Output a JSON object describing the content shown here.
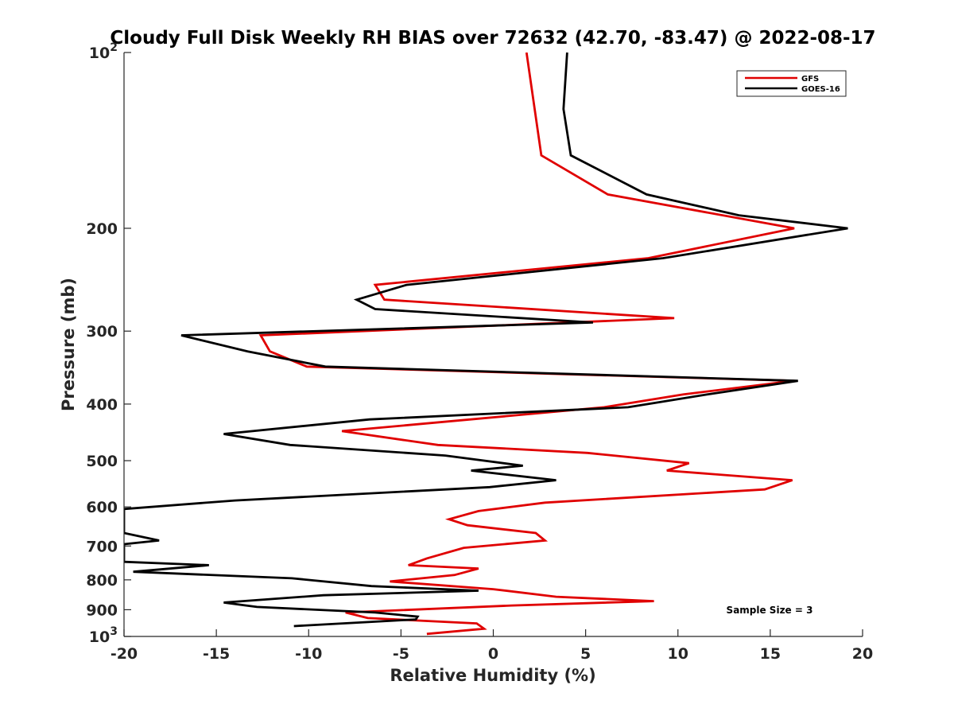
{
  "chart_data": {
    "type": "line",
    "title": "Cloudy Full Disk Weekly RH BIAS over 72632 (42.70, -83.47) @ 2022-08-17",
    "xlabel": "Relative Humidity (%)",
    "ylabel": "Pressure (mb)",
    "xlim": [
      -20,
      20
    ],
    "ylim": [
      100,
      1000
    ],
    "y_scale": "log",
    "y_reversed": true,
    "x_ticks": [
      "-20",
      "-15",
      "-10",
      "-5",
      "0",
      "5",
      "10",
      "15",
      "20"
    ],
    "y_ticks": [
      {
        "value": 100,
        "base": "10",
        "exp": "2"
      },
      {
        "value": 200,
        "base": "200",
        "exp": ""
      },
      {
        "value": 300,
        "base": "300",
        "exp": ""
      },
      {
        "value": 400,
        "base": "400",
        "exp": ""
      },
      {
        "value": 500,
        "base": "500",
        "exp": ""
      },
      {
        "value": 600,
        "base": "600",
        "exp": ""
      },
      {
        "value": 700,
        "base": "700",
        "exp": ""
      },
      {
        "value": 800,
        "base": "800",
        "exp": ""
      },
      {
        "value": 900,
        "base": "900",
        "exp": ""
      },
      {
        "value": 1000,
        "base": "10",
        "exp": "3"
      }
    ],
    "grid": false,
    "legend_position": "top-right",
    "annotation": "Sample Size = 3",
    "series": [
      {
        "name": "GFS",
        "color": "#e00000",
        "points": [
          [
            1.8,
            100
          ],
          [
            2.6,
            150
          ],
          [
            6.2,
            175
          ],
          [
            16.3,
            200
          ],
          [
            8.4,
            225
          ],
          [
            -6.4,
            250
          ],
          [
            -5.9,
            265
          ],
          [
            9.8,
            285
          ],
          [
            -12.6,
            305
          ],
          [
            -12.1,
            325
          ],
          [
            -10.1,
            345
          ],
          [
            16.3,
            365
          ],
          [
            10.3,
            385
          ],
          [
            6.0,
            405
          ],
          [
            -8.2,
            445
          ],
          [
            -3.0,
            470
          ],
          [
            5.1,
            485
          ],
          [
            10.6,
            505
          ],
          [
            9.4,
            520
          ],
          [
            16.2,
            540
          ],
          [
            14.7,
            560
          ],
          [
            2.8,
            590
          ],
          [
            -0.8,
            610
          ],
          [
            -2.4,
            630
          ],
          [
            -1.4,
            645
          ],
          [
            2.3,
            665
          ],
          [
            2.8,
            685
          ],
          [
            -1.6,
            705
          ],
          [
            -3.6,
            735
          ],
          [
            -4.6,
            755
          ],
          [
            -0.8,
            765
          ],
          [
            -2.1,
            785
          ],
          [
            -5.6,
            805
          ],
          [
            0.0,
            830
          ],
          [
            3.4,
            855
          ],
          [
            8.7,
            870
          ],
          [
            1.0,
            885
          ],
          [
            -8.0,
            910
          ],
          [
            -6.8,
            930
          ],
          [
            -0.9,
            950
          ],
          [
            -0.5,
            970
          ],
          [
            -3.6,
            990
          ]
        ]
      },
      {
        "name": "GOES-16",
        "color": "#000000",
        "points": [
          [
            4.0,
            100
          ],
          [
            3.8,
            125
          ],
          [
            4.2,
            150
          ],
          [
            8.3,
            175
          ],
          [
            13.3,
            190
          ],
          [
            19.2,
            200
          ],
          [
            9.2,
            225
          ],
          [
            -4.7,
            250
          ],
          [
            -7.4,
            265
          ],
          [
            -6.4,
            275
          ],
          [
            5.4,
            290
          ],
          [
            -16.9,
            305
          ],
          [
            -13.3,
            325
          ],
          [
            -9.1,
            345
          ],
          [
            16.5,
            365
          ],
          [
            11.6,
            385
          ],
          [
            7.3,
            405
          ],
          [
            -6.7,
            425
          ],
          [
            -14.6,
            450
          ],
          [
            -11.0,
            470
          ],
          [
            -2.6,
            490
          ],
          [
            1.6,
            510
          ],
          [
            -1.2,
            520
          ],
          [
            3.4,
            540
          ],
          [
            -0.2,
            555
          ],
          [
            -14.0,
            585
          ],
          [
            -20.0,
            605
          ],
          [
            -20.0,
            665
          ],
          [
            -18.1,
            685
          ],
          [
            -20.0,
            695
          ],
          [
            -20.0,
            745
          ],
          [
            -15.4,
            755
          ],
          [
            -19.5,
            775
          ],
          [
            -10.9,
            795
          ],
          [
            -6.6,
            820
          ],
          [
            -0.8,
            835
          ],
          [
            -9.2,
            850
          ],
          [
            -14.6,
            875
          ],
          [
            -12.8,
            890
          ],
          [
            -6.4,
            910
          ],
          [
            -4.1,
            925
          ],
          [
            -4.2,
            935
          ],
          [
            -10.8,
            960
          ]
        ]
      }
    ]
  }
}
